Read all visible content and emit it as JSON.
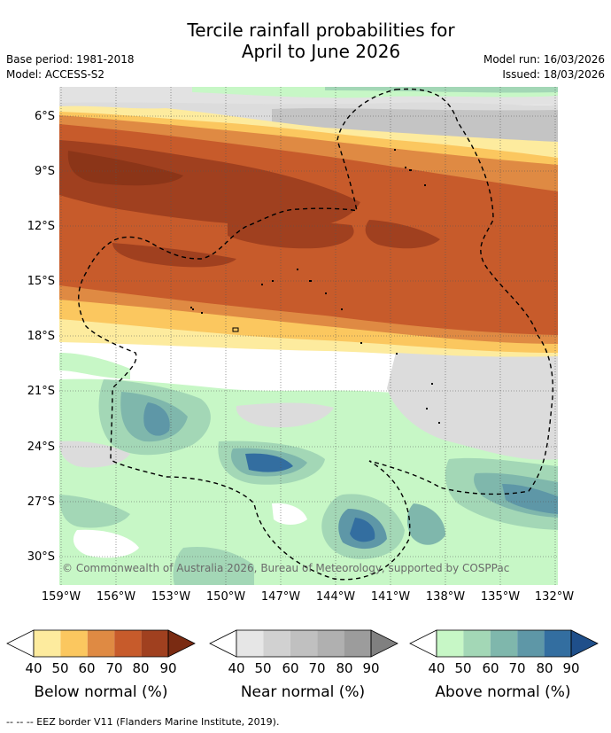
{
  "title_line1": "Tercile rainfall probabilities for",
  "title_line2": "April to June 2026",
  "base_period": "Base period: 1981-2018",
  "model": "Model: ACCESS-S2",
  "model_run": "Model run: 16/03/2026",
  "issued": "Issued: 18/03/2026",
  "lat_labels": [
    "6°S",
    "9°S",
    "12°S",
    "15°S",
    "18°S",
    "21°S",
    "24°S",
    "27°S",
    "30°S"
  ],
  "lon_labels": [
    "159°W",
    "156°W",
    "153°W",
    "150°W",
    "147°W",
    "144°W",
    "141°W",
    "138°W",
    "135°W",
    "132°W"
  ],
  "copyright": "© Commonwealth of Australia 2026, Bureau of Meteorology, supported by COSPPac",
  "colorbars": [
    {
      "label": "Below normal (%)",
      "ticks": [
        "40",
        "50",
        "60",
        "70",
        "80",
        "90"
      ],
      "colors": [
        "#fdeb9e",
        "#fbc75f",
        "#df8a43",
        "#c75b2b",
        "#a0401f",
        "#7a2b12"
      ]
    },
    {
      "label": "Near normal (%)",
      "ticks": [
        "40",
        "50",
        "60",
        "70",
        "80",
        "90"
      ],
      "colors": [
        "#e6e6e6",
        "#d1d1d1",
        "#c0c0c0",
        "#b0b0b0",
        "#9c9c9c",
        "#808080"
      ]
    },
    {
      "label": "Above normal (%)",
      "ticks": [
        "40",
        "50",
        "60",
        "70",
        "80",
        "90"
      ],
      "colors": [
        "#c7f7c6",
        "#a3d7b6",
        "#7fb7ac",
        "#5e97a7",
        "#336ea0",
        "#1f4f8a"
      ]
    }
  ],
  "footnote": "--  --  -- EEZ border V11 (Flanders Marine Institute, 2019)."
}
